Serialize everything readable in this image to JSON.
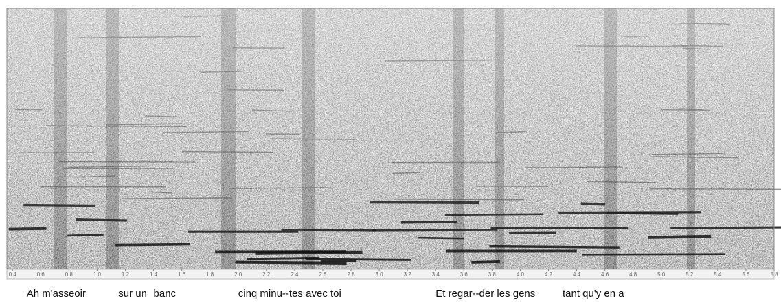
{
  "chart_data": {
    "type": "spectrogram",
    "xlim": [
      0.36,
      5.8
    ],
    "xticks": [
      0.4,
      0.6,
      0.8,
      {
        "value": 1,
        "label": "1.0"
      },
      1.2,
      1.4,
      1.6,
      1.8,
      {
        "value": 2,
        "label": "2.0"
      },
      2.2,
      2.4,
      2.6,
      2.8,
      {
        "value": 3,
        "label": "3.0"
      },
      3.2,
      3.4,
      3.6,
      3.8,
      {
        "value": 4,
        "label": "4.0"
      },
      4.2,
      4.4,
      4.6,
      4.8,
      {
        "value": 5,
        "label": "5.0"
      },
      5.2,
      5.4,
      5.6,
      5.8
    ],
    "annotations": [
      {
        "text": "Ah m'asseoir",
        "x": 0.5
      },
      {
        "text": "sur un",
        "x": 1.15
      },
      {
        "text": "banc",
        "x": 1.4
      },
      {
        "text": "cinq minu--tes avec toi",
        "x": 2.0
      },
      {
        "text": "Et regar--der les gens",
        "x": 3.4
      },
      {
        "text": "tant qu'y en a",
        "x": 4.3
      }
    ]
  }
}
